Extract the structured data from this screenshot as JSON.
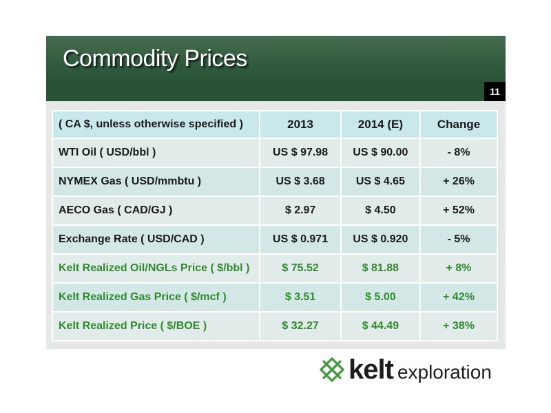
{
  "slide": {
    "title": "Commodity Prices",
    "page_number": "11"
  },
  "table": {
    "header": [
      "( CA $, unless otherwise specified )",
      "2013",
      "2014 (E)",
      "Change"
    ],
    "rows": [
      {
        "label": "WTI Oil ( USD/bbl )",
        "y2013": "US $ 97.98",
        "y2014": "US $ 90.00",
        "change": "- 8%",
        "style": "light"
      },
      {
        "label": "NYMEX Gas ( USD/mmbtu )",
        "y2013": "US $ 3.68",
        "y2014": "US $ 4.65",
        "change": "+ 26%",
        "style": "mid"
      },
      {
        "label": "AECO Gas ( CAD/GJ )",
        "y2013": "$ 2.97",
        "y2014": "$ 4.50",
        "change": "+ 52%",
        "style": "light"
      },
      {
        "label": "Exchange Rate ( USD/CAD )",
        "y2013": "US $ 0.971",
        "y2014": "US $ 0.920",
        "change": "- 5%",
        "style": "mid"
      },
      {
        "label": "Kelt Realized Oil/NGLs Price ( $/bbl )",
        "y2013": "$ 75.52",
        "y2014": "$ 81.88",
        "change": "+ 8%",
        "style": "light green"
      },
      {
        "label": "Kelt Realized Gas Price ( $/mcf )",
        "y2013": "$ 3.51",
        "y2014": "$ 5.00",
        "change": "+ 42%",
        "style": "mid green"
      },
      {
        "label": "Kelt Realized Price ( $/BOE )",
        "y2013": "$ 32.27",
        "y2014": "$ 44.49",
        "change": "+ 38%",
        "style": "light green"
      }
    ]
  },
  "logo": {
    "brand": "kelt",
    "tagline": "exploration",
    "icon": "celtic-knot-icon",
    "color": "#3f9a3a"
  }
}
